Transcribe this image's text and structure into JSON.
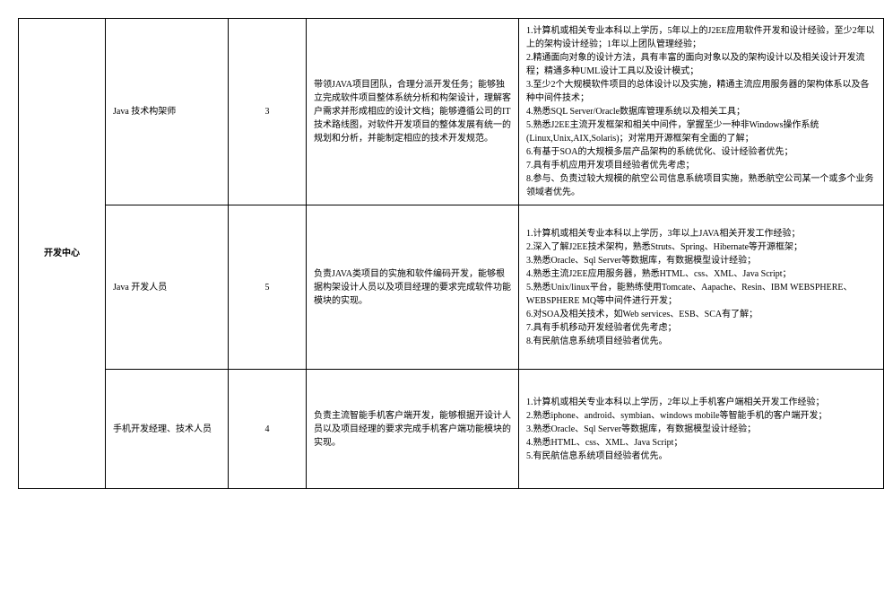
{
  "department": "开发中心",
  "rows": [
    {
      "position": "Java 技术构架师",
      "count": "3",
      "duty": "带领JAVA项目团队，合理分派开发任务；能够独立完成软件项目整体系统分析和构架设计，理解客户需求并形成相应的设计文档；能够遵循公司的IT技术路线图，对软件开发项目的整体发展有统一的规划和分析，并能制定相应的技术开发规范。",
      "req": "1.计算机或相关专业本科以上学历，5年以上的J2EE应用软件开发和设计经验，至少2年以上的架构设计经验；1年以上团队管理经验；\n2.精通面向对象的设计方法，具有丰富的面向对象以及的架构设计以及相关设计开发流程；精通多种UML设计工具以及设计模式；\n3.至少2个大规模软件项目的总体设计以及实施，精通主流应用服务器的架构体系以及各种中间件技术；\n4.熟悉SQL Server/Oracle数据库管理系统以及相关工具；\n5.熟悉J2EE主流开发框架和相关中间件，掌握至少一种非Windows操作系统(Linux,Unix,AIX,Solaris)；对常用开源框架有全面的了解；\n6.有基于SOA的大规模多层产品架构的系统优化、设计经验者优先；\n7.具有手机应用开发项目经验者优先考虑；\n8.参与、负责过较大规模的航空公司信息系统项目实施，熟悉航空公司某一个或多个业务领域者优先。"
    },
    {
      "position": "Java 开发人员",
      "count": "5",
      "duty": "负责JAVA类项目的实施和软件编码开发，能够根据构架设计人员以及项目经理的要求完成软件功能模块的实现。",
      "req": "1.计算机或相关专业本科以上学历，3年以上JAVA相关开发工作经验；\n2.深入了解J2EE技术架构，熟悉Struts、Spring、Hibernate等开源框架；\n3.熟悉Oracle、Sql Server等数据库，有数据模型设计经验；\n4.熟悉主流J2EE应用服务器，熟悉HTML、css、XML、Java Script；\n5.熟悉Unix/linux平台，能熟练使用Tomcate、Aapache、Resin、IBM WEBSPHERE、WEBSPHERE MQ等中间件进行开发；\n6.对SOA及相关技术，如Web services、ESB、SCA有了解；\n7.具有手机移动开发经验者优先考虑；\n8.有民航信息系统项目经验者优先。"
    },
    {
      "position": "手机开发经理、技术人员",
      "count": "4",
      "duty": "负责主流智能手机客户端开发，能够根据开设计人员以及项目经理的要求完成手机客户端功能模块的实现。",
      "req": "1.计算机或相关专业本科以上学历，2年以上手机客户端相关开发工作经验；\n2.熟悉iphone、android、symbian、windows mobile等智能手机的客户端开发；\n3.熟悉Oracle、Sql Server等数据库，有数据模型设计经验；\n4.熟悉HTML、css、XML、Java Script；\n5.有民航信息系统项目经验者优先。"
    }
  ]
}
